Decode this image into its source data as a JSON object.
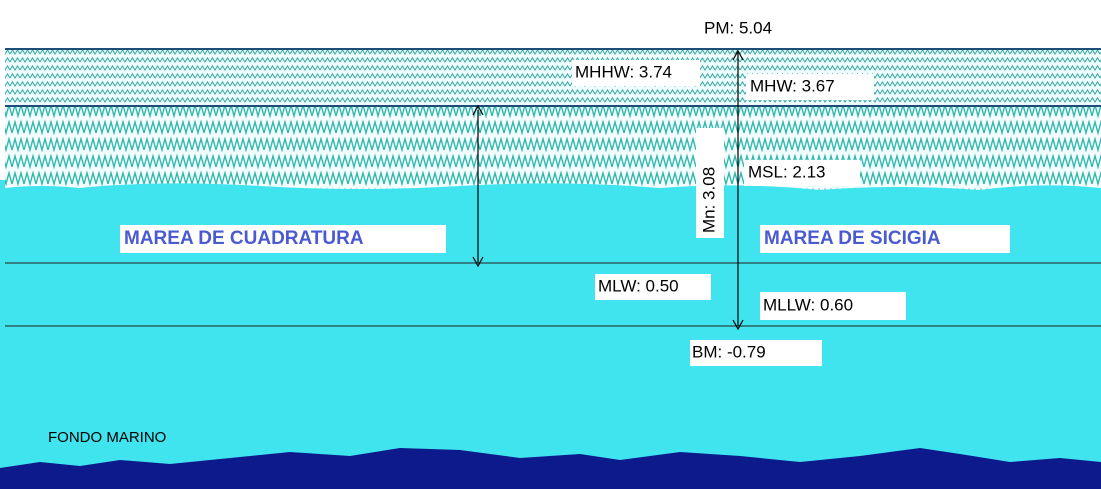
{
  "labels": {
    "pm": "PM: 5.04",
    "mhhw": "MHHW: 3.74",
    "mhw": "MHW: 3.67",
    "mn": "Mn: 3.08",
    "msl": "MSL: 2.13",
    "mlw": "MLW: 0.50",
    "mllw": "MLLW: 0.60",
    "bm": "BM: -0.79",
    "neap": "MAREA DE CUADRATURA",
    "spring": "MAREA DE SICIGIA",
    "seabed": "FONDO MARINO"
  }
}
